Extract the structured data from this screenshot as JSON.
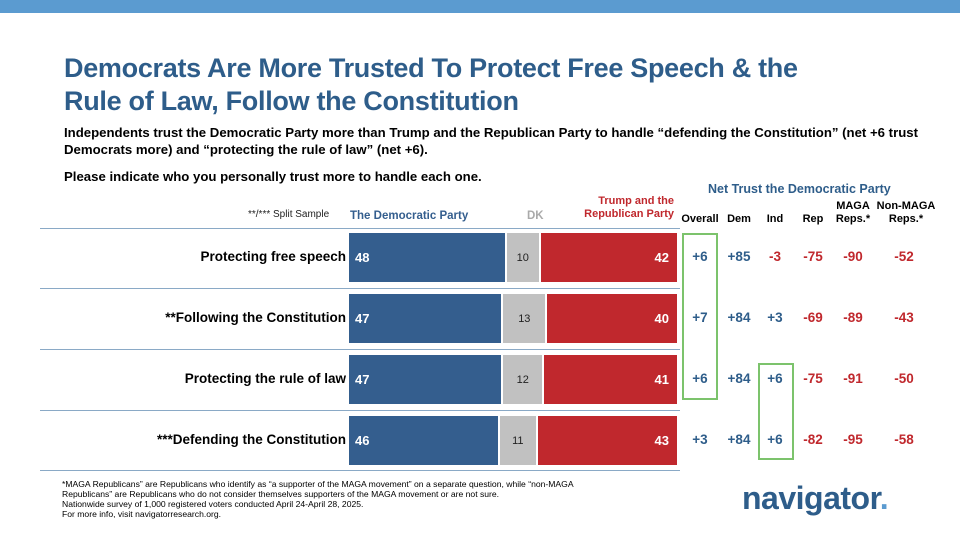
{
  "title_lines": [
    "Democrats Are More Trusted To Protect Free Speech & the",
    "Rule of Law, Follow the Constitution"
  ],
  "subtitle": "Independents trust the Democratic Party more than Trump and the Republican Party to handle “defending the Constitution” (net +6 trust Democrats more) and “protecting the rule of law” (net +6).",
  "question": "Please indicate who you personally trust more to handle each one.",
  "split_note": "**/*** Split Sample",
  "headers": {
    "dem": "The Democratic Party",
    "dk": "DK",
    "rep": "Trump and the Republican Party"
  },
  "net_title": "Net Trust the Democratic Party",
  "net_columns": [
    "Overall",
    "Dem",
    "Ind",
    "Rep",
    "MAGA Reps.*",
    "Non-MAGA Reps.*"
  ],
  "chart_data": {
    "type": "bar",
    "stacked": true,
    "orientation": "horizontal",
    "categories": [
      "Protecting free speech",
      "**Following the Constitution",
      "Protecting the rule of law",
      "***Defending the Constitution"
    ],
    "series": [
      {
        "name": "The Democratic Party",
        "values": [
          48,
          47,
          47,
          46
        ],
        "color": "#345e8e"
      },
      {
        "name": "DK",
        "values": [
          10,
          13,
          12,
          11
        ],
        "color": "#c1c1c1"
      },
      {
        "name": "Trump and the Republican Party",
        "values": [
          42,
          40,
          41,
          43
        ],
        "color": "#c0282d"
      }
    ],
    "net_trust": [
      [
        "+6",
        "+85",
        "-3",
        "-75",
        "-90",
        "-52"
      ],
      [
        "+7",
        "+84",
        "+3",
        "-69",
        "-89",
        "-43"
      ],
      [
        "+6",
        "+84",
        "+6",
        "-75",
        "-91",
        "-50"
      ],
      [
        "+3",
        "+84",
        "+6",
        "-82",
        "-95",
        "-58"
      ]
    ]
  },
  "footnote_lines": [
    "*MAGA Republicans” are Republicans who identify as “a supporter of the MAGA movement” on a separate question, while “non-MAGA",
    "Republicans” are Republicans who do not consider themselves supporters of the MAGA movement or are not sure.",
    "Nationwide survey of 1,000 registered voters conducted April 24-April 28, 2025.",
    "For more info, visit navigatorresearch.org."
  ],
  "logo": {
    "text": "navigator",
    "dot": "."
  }
}
